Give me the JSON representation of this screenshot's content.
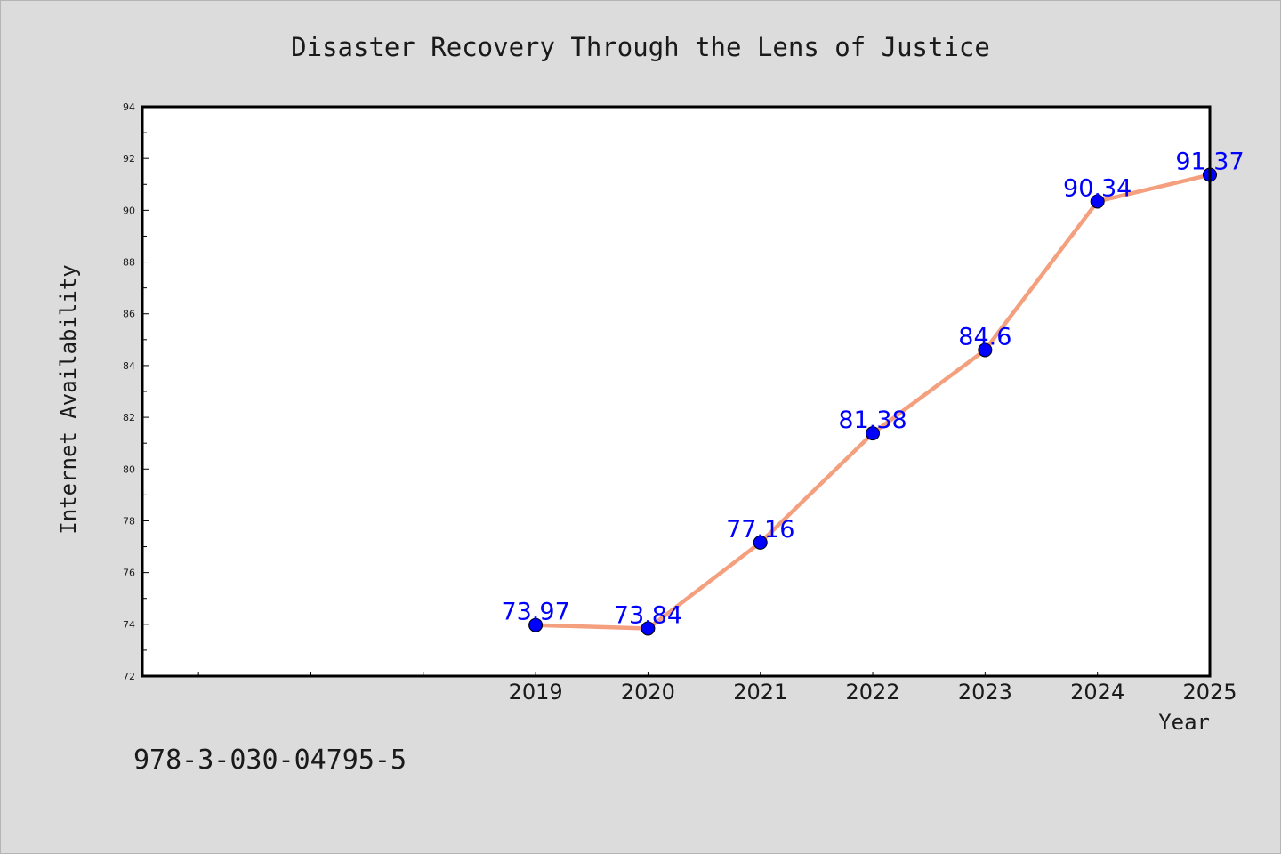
{
  "chart_data": {
    "type": "line",
    "title": "Disaster Recovery Through the Lens of Justice",
    "xlabel": "Year",
    "ylabel": "Internet Availability",
    "x": [
      "2019",
      "2020",
      "2021",
      "2022",
      "2023",
      "2024",
      "2025"
    ],
    "series": [
      {
        "values": [
          73.97,
          73.84,
          77.16,
          81.38,
          84.6,
          90.34,
          91.37
        ],
        "line_color": "#f4a07e",
        "marker_color": "#0000ff"
      }
    ],
    "data_labels": [
      "73.97",
      "73.84",
      "77.16",
      "81.38",
      "84.6",
      "90.34",
      "91.37"
    ],
    "data_label_color": "#0000ff",
    "ylim": [
      72,
      94
    ],
    "yticks": [
      "72",
      "74",
      "76",
      "78",
      "80",
      "82",
      "84",
      "86",
      "88",
      "90",
      "92",
      "94"
    ],
    "x_extra_ticks_left": 3,
    "grid": false,
    "legend": "none"
  },
  "footnote": "978-3-030-04795-5"
}
